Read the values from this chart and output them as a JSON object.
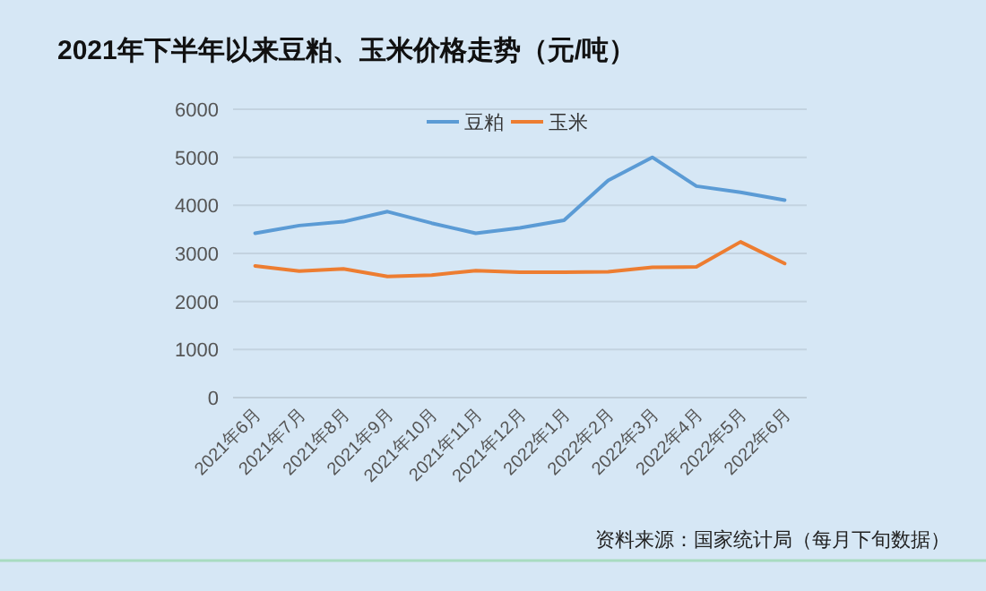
{
  "chart_data": {
    "type": "line",
    "title": "2021年下半年以来豆粕、玉米价格走势（元/吨）",
    "categories": [
      "2021年6月",
      "2021年7月",
      "2021年8月",
      "2021年9月",
      "2021年10月",
      "2021年11月",
      "2021年12月",
      "2022年1月",
      "2022年2月",
      "2022年3月",
      "2022年4月",
      "2022年5月",
      "2022年6月"
    ],
    "series": [
      {
        "name": "豆粕",
        "color": "#5b9bd5",
        "values": [
          3420,
          3580,
          3660,
          3870,
          3630,
          3420,
          3530,
          3690,
          4520,
          5000,
          4400,
          4270,
          4110
        ]
      },
      {
        "name": "玉米",
        "color": "#ed7d31",
        "values": [
          2740,
          2630,
          2680,
          2520,
          2550,
          2640,
          2610,
          2610,
          2620,
          2710,
          2720,
          3240,
          2790
        ]
      }
    ],
    "ylim": [
      0,
      6000
    ],
    "yticks": [
      0,
      1000,
      2000,
      3000,
      4000,
      5000,
      6000
    ],
    "grid": "y",
    "legend": "top",
    "annotations": [
      "资料来源：国家统计局（每月下旬数据）"
    ]
  }
}
